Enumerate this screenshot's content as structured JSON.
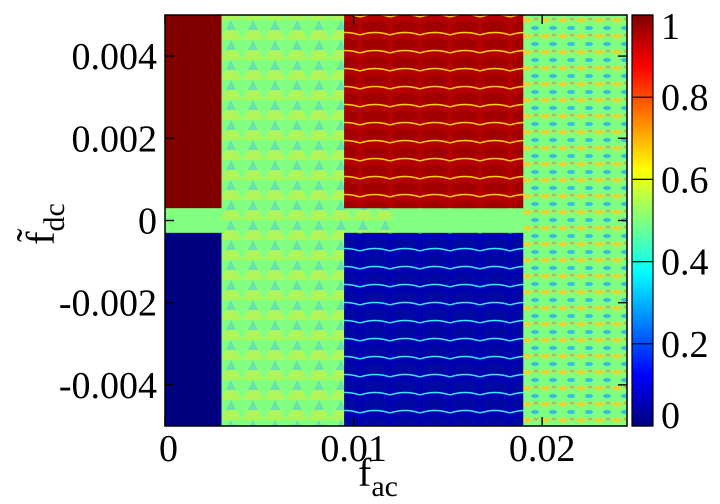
{
  "chart_data": {
    "type": "heatmap",
    "title": "",
    "xlabel": "f",
    "xlabel_sub": "ac",
    "ylabel": "f̃",
    "ylabel_sub": "dc",
    "xlim": [
      0,
      0.0245
    ],
    "ylim": [
      -0.005,
      0.005
    ],
    "x_ticks": [
      {
        "value": 0,
        "label": "0"
      },
      {
        "value": 0.01,
        "label": "0.01"
      },
      {
        "value": 0.02,
        "label": "0.02"
      }
    ],
    "y_ticks": [
      {
        "value": 0.004,
        "label": "0.004"
      },
      {
        "value": 0.002,
        "label": "0.002"
      },
      {
        "value": 0,
        "label": "0"
      },
      {
        "value": -0.002,
        "label": "-0.002"
      },
      {
        "value": -0.004,
        "label": "-0.004"
      }
    ],
    "colorbar": {
      "range": [
        0,
        1
      ],
      "colormap": "jet",
      "ticks": [
        {
          "value": 1,
          "label": "1"
        },
        {
          "value": 0.8,
          "label": "0.8"
        },
        {
          "value": 0.6,
          "label": "0.6"
        },
        {
          "value": 0.4,
          "label": "0.4"
        },
        {
          "value": 0.2,
          "label": "0.2"
        },
        {
          "value": 0,
          "label": "0"
        }
      ]
    },
    "regions": [
      {
        "x": [
          0,
          0.003
        ],
        "y": [
          0.0003,
          0.005
        ],
        "value": 1.0
      },
      {
        "x": [
          0,
          0.003
        ],
        "y": [
          -0.005,
          -0.0003
        ],
        "value": 0.0
      },
      {
        "x": [
          0.003,
          0.012
        ],
        "y": [
          -0.005,
          0.005
        ],
        "value": 0.5
      },
      {
        "x": [
          0.0095,
          0.02
        ],
        "y": [
          0.0003,
          0.005
        ],
        "value": 0.95
      },
      {
        "x": [
          0.0095,
          0.02
        ],
        "y": [
          -0.005,
          -0.0003
        ],
        "value": 0.05
      },
      {
        "x": [
          0.019,
          0.0245
        ],
        "y": [
          -0.005,
          0.005
        ],
        "value": 0.5
      }
    ],
    "grid": false,
    "legend": "none"
  }
}
